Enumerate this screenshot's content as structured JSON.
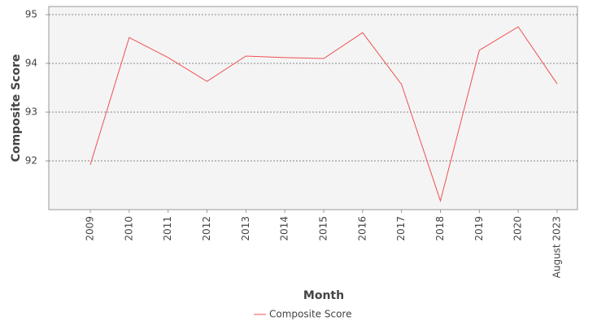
{
  "chart_data": {
    "type": "line",
    "x_label": "Month",
    "y_label": "Composite Score",
    "categories": [
      "2009",
      "2010",
      "2011",
      "2012",
      "2013",
      "2014",
      "2015",
      "2016",
      "2017",
      "2018",
      "2019",
      "2020",
      "August 2023"
    ],
    "series": [
      {
        "name": "Composite Score",
        "color": "#f05050",
        "values": [
          91.92,
          94.53,
          94.12,
          93.63,
          94.15,
          94.12,
          94.1,
          94.63,
          93.57,
          91.18,
          94.27,
          94.75,
          93.58
        ]
      }
    ],
    "ylim": [
      91.0,
      95.167
    ],
    "yticks": [
      92,
      93,
      94,
      95
    ],
    "grid": true
  }
}
